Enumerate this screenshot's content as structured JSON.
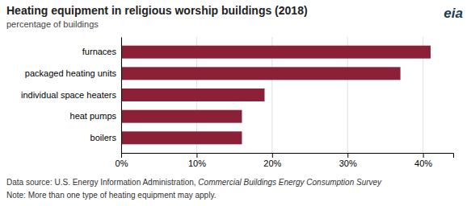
{
  "chart_data": {
    "type": "bar",
    "orientation": "horizontal",
    "title": "Heating equipment in religious worship buildings (2018)",
    "subtitle": "percentage of buildings",
    "categories": [
      "boilers",
      "heat pumps",
      "individual space heaters",
      "packaged heating units",
      "furnaces"
    ],
    "values": [
      16,
      16,
      19,
      37,
      41
    ],
    "color": "#8B2036",
    "xlim": [
      0,
      44
    ],
    "xticks": [
      {
        "value": 0,
        "label": "0%"
      },
      {
        "value": 10,
        "label": "10%"
      },
      {
        "value": 20,
        "label": "20%"
      },
      {
        "value": 30,
        "label": "30%"
      },
      {
        "value": 40,
        "label": "40%"
      }
    ],
    "grid": true,
    "source": "Data source: U.S. Energy Information Administration, ",
    "source_italic": "Commercial Buildings Energy Consumption Survey",
    "note": "Note: More than one type of heating equipment may apply.",
    "annotations": [
      "eia"
    ]
  }
}
